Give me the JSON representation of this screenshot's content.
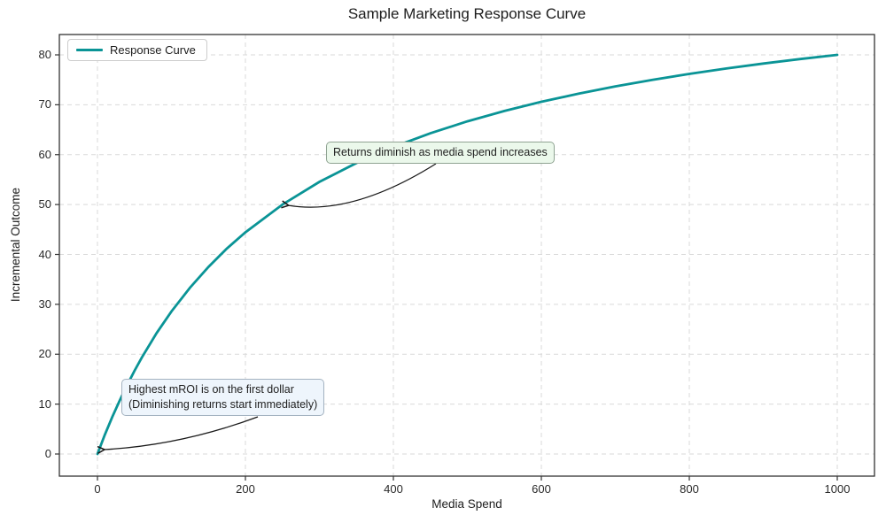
{
  "chart_data": {
    "type": "line",
    "title": "Sample Marketing Response Curve",
    "xlabel": "Media Spend",
    "ylabel": "Incremental Outcome",
    "xlim": [
      -52,
      1052
    ],
    "ylim": [
      -4.5,
      84.2
    ],
    "xticks": [
      0,
      200,
      400,
      600,
      800,
      1000
    ],
    "yticks": [
      0,
      10,
      20,
      30,
      40,
      50,
      60,
      70,
      80
    ],
    "grid": true,
    "grid_style": "dashed",
    "legend": {
      "position": "upper left",
      "entries": [
        {
          "label": "Response Curve",
          "color": "#0a9496"
        }
      ]
    },
    "series": [
      {
        "name": "Response Curve",
        "color": "#0a9496",
        "formula": "y = 100x / (x + 250)",
        "x": [
          0,
          10,
          20,
          30,
          40,
          50,
          60,
          80,
          100,
          125,
          150,
          175,
          200,
          250,
          300,
          350,
          400,
          450,
          500,
          550,
          600,
          650,
          700,
          750,
          800,
          850,
          900,
          950,
          1000
        ],
        "y": [
          0,
          3.85,
          7.41,
          10.71,
          13.79,
          16.67,
          19.35,
          24.24,
          28.57,
          33.33,
          37.5,
          41.18,
          44.44,
          50,
          54.55,
          58.33,
          61.54,
          64.29,
          66.67,
          68.75,
          70.59,
          72.22,
          73.68,
          75,
          76.19,
          77.27,
          78.26,
          79.17,
          80
        ]
      }
    ],
    "annotations": [
      {
        "text": "Returns diminish as media spend increases",
        "xy": [
          250,
          50
        ],
        "box_fill": "#ebf8eb",
        "box_border": "#8fa392"
      },
      {
        "lines": [
          "Highest mROI is on the first dollar",
          "(Diminishing returns start immediately)"
        ],
        "xy": [
          0,
          0
        ],
        "box_fill": "#eef5fc",
        "box_border": "#a3b2c0"
      }
    ],
    "colors": {
      "curve": "#0a9496",
      "grid": "#d9d9d9",
      "spine": "#333333",
      "arrow": "#1a1a1a",
      "text": "#1c1c1c"
    }
  }
}
